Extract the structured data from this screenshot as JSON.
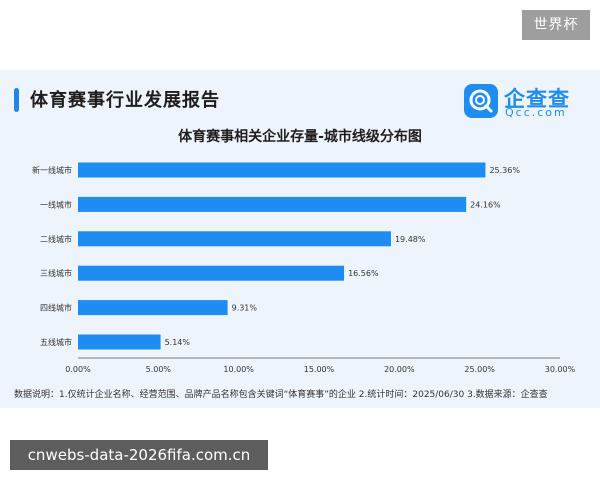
{
  "corner_badge": "世界杯",
  "report_title": "体育赛事行业发展报告",
  "logo": {
    "name_cn": "企查查",
    "name_en": "Qcc.com"
  },
  "footnote": "数据说明：1.仅统计企业名称、经营范围、品牌产品名称包含关键词“体育赛事”的企业  2.统计时间：2025/06/30  3.数据来源：企查查",
  "watermark_text": "cnwebs-data-2026fifa.com.cn",
  "colors": {
    "bar": "#1e8cf1",
    "card_bg": "#eef4fb",
    "accent": "#2185e8"
  },
  "chart_data": {
    "type": "bar",
    "orientation": "horizontal",
    "title": "体育赛事相关企业存量-城市线级分布图",
    "categories": [
      "新一线城市",
      "一线城市",
      "二线城市",
      "三线城市",
      "四线城市",
      "五线城市"
    ],
    "values": [
      25.36,
      24.16,
      19.48,
      16.56,
      9.31,
      5.14
    ],
    "value_labels": [
      "25.36%",
      "24.16%",
      "19.48%",
      "16.56%",
      "9.31%",
      "5.14%"
    ],
    "xlim": [
      0,
      30
    ],
    "xticks": [
      "0.00%",
      "5.00%",
      "10.00%",
      "15.00%",
      "20.00%",
      "25.00%",
      "30.00%"
    ],
    "xlabel": "",
    "ylabel": "",
    "grid": false,
    "legend": "none"
  }
}
